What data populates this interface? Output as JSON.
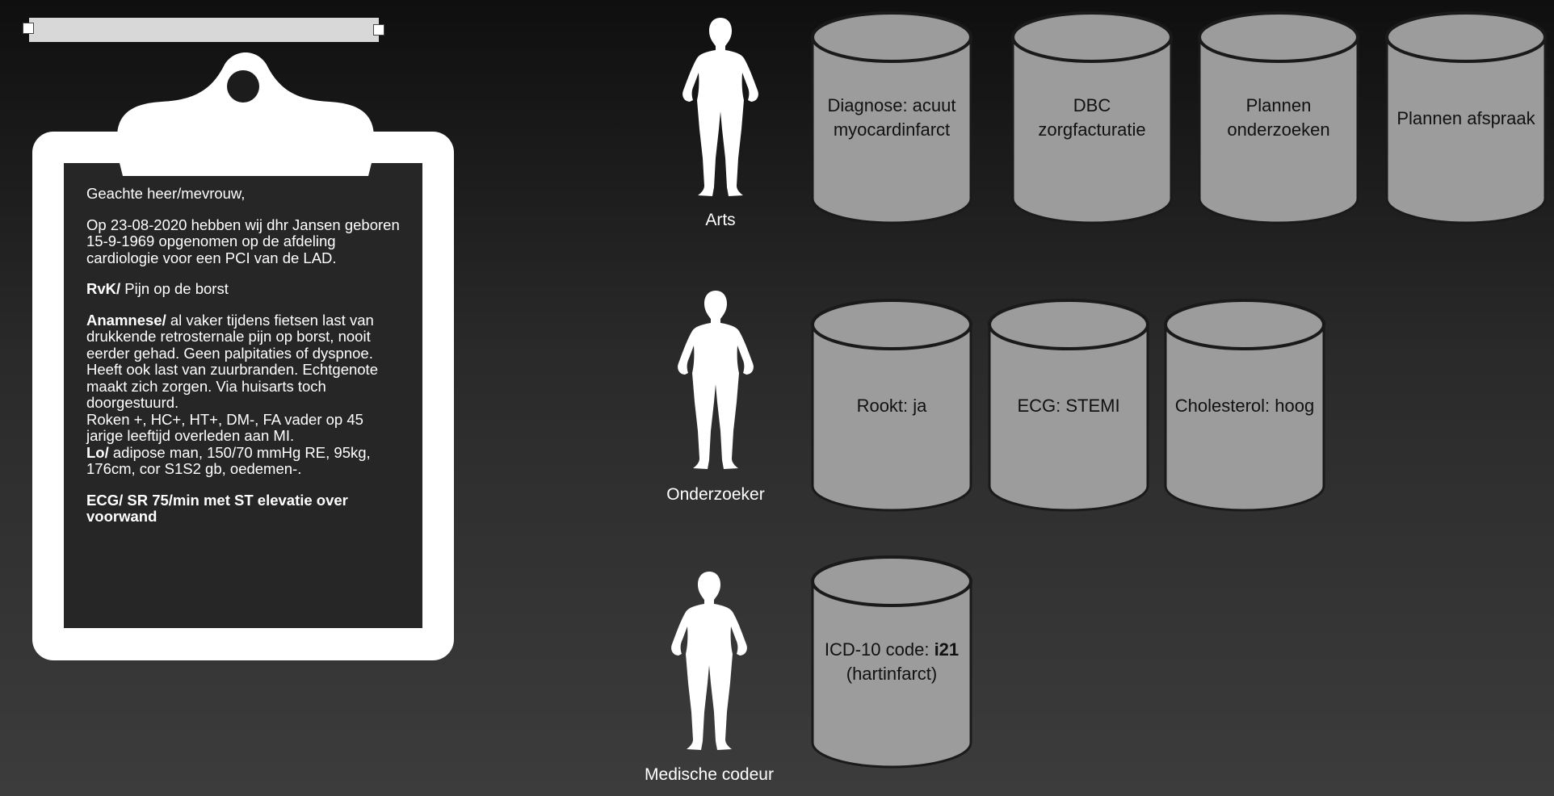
{
  "colors": {
    "cylinder_fill": "#9c9c9c",
    "cylinder_stroke": "#1a1a1a",
    "clipboard": "#ffffff",
    "paper": "#262626",
    "handle_bar": "#d8d8d8"
  },
  "letter": {
    "greeting": "Geachte heer/mevrouw,",
    "intro": "Op 23-08-2020 hebben wij dhr Jansen geboren 15-9-1969 opgenomen op de afdeling cardiologie voor een PCI van de LAD.",
    "rvk_label": "RvK/",
    "rvk_text": " Pijn op de borst",
    "anamnese_label": "Anamnese/",
    "anamnese_text": " al vaker tijdens fietsen last van drukkende retrosternale pijn op borst, nooit eerder gehad. Geen palpitaties of dyspnoe. Heeft ook last van zuurbranden. Echtgenote maakt zich zorgen. Via huisarts toch doorgestuurd.",
    "risk_text": "Roken +, HC+, HT+, DM-, FA vader op 45 jarige leeftijd overleden aan MI.",
    "lo_label": "Lo/",
    "lo_text": " adipose man, 150/70 mmHg RE, 95kg, 176cm, cor S1S2 gb, oedemen-.",
    "ecg_text": "ECG/ SR 75/min met ST elevatie over voorwand"
  },
  "roles": {
    "arts": "Arts",
    "onderzoeker": "Onderzoeker",
    "codeur": "Medische codeur"
  },
  "cylinders": {
    "arts": [
      {
        "line1": "Diagnose: acuut",
        "line2": "myocardinfarct"
      },
      {
        "line1": "DBC",
        "line2": "zorgfacturatie"
      },
      {
        "line1": "Plannen",
        "line2": "onderzoeken"
      },
      {
        "line1": "Plannen afspraak"
      }
    ],
    "onderzoeker": [
      {
        "line1": "Rookt: ja"
      },
      {
        "line1": "ECG: STEMI"
      },
      {
        "line1": "Cholesterol: hoog"
      }
    ],
    "codeur": [
      {
        "line1_prefix": "ICD-10 code: ",
        "line1_bold": "i21",
        "line2": "(hartinfarct)"
      }
    ]
  }
}
